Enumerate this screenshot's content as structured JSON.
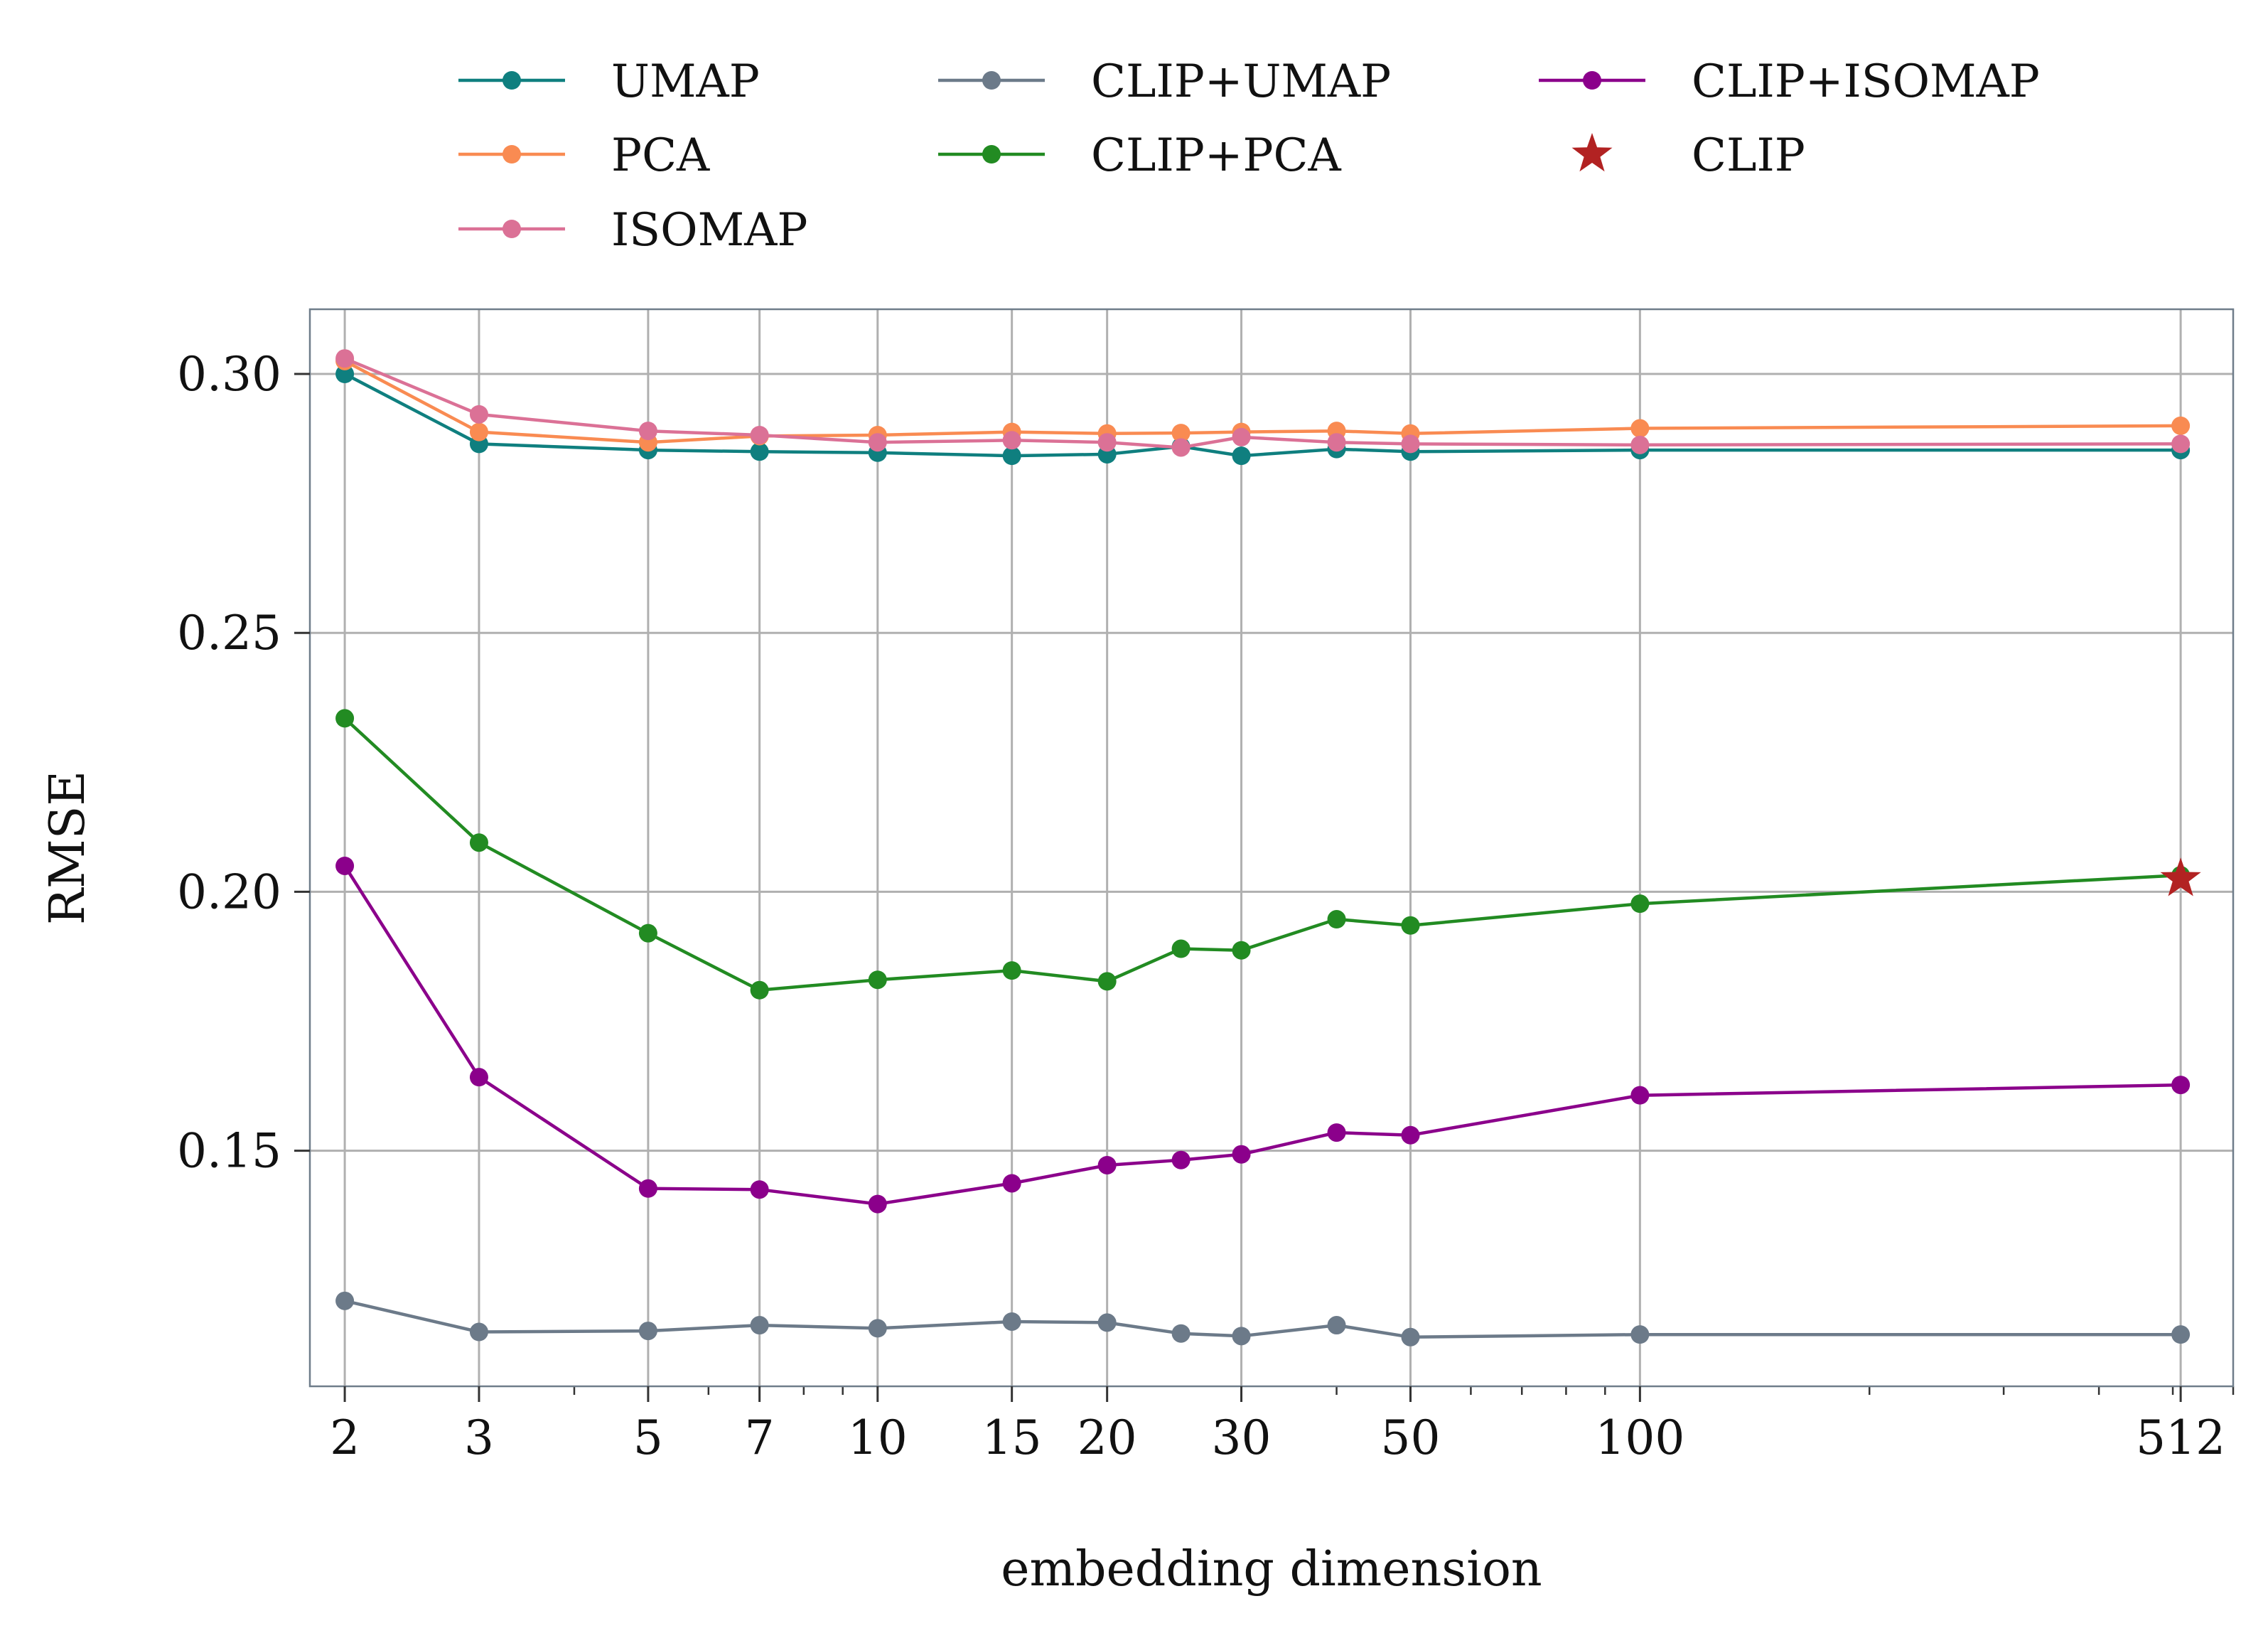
{
  "chart_data": {
    "type": "line",
    "xlabel": "embedding dimension",
    "ylabel": "RMSE",
    "xscale": "log",
    "xlim": [
      1.8,
      600
    ],
    "ylim": [
      0.1045,
      0.3125
    ],
    "x_ticks": [
      2,
      3,
      5,
      7,
      10,
      15,
      20,
      30,
      50,
      100,
      512
    ],
    "y_ticks": [
      0.15,
      0.2,
      0.25,
      0.3
    ],
    "y_tick_labels": [
      "0.15",
      "0.20",
      "0.25",
      "0.30"
    ],
    "grid": true,
    "legend_position": "top",
    "series": [
      {
        "name": "UMAP",
        "color": "#0f7f7f",
        "x": [
          2,
          3,
          5,
          7,
          10,
          15,
          20,
          25,
          30,
          40,
          50,
          100,
          512
        ],
        "y": [
          0.3,
          0.2865,
          0.2853,
          0.285,
          0.2848,
          0.2842,
          0.2845,
          0.286,
          0.2842,
          0.2855,
          0.285,
          0.2853,
          0.2853
        ]
      },
      {
        "name": "PCA",
        "color": "#f98b52",
        "x": [
          2,
          3,
          5,
          7,
          10,
          15,
          20,
          25,
          30,
          40,
          50,
          100,
          512
        ],
        "y": [
          0.3025,
          0.2888,
          0.2868,
          0.288,
          0.2882,
          0.2888,
          0.2885,
          0.2886,
          0.2888,
          0.289,
          0.2885,
          0.2895,
          0.29
        ]
      },
      {
        "name": "ISOMAP",
        "color": "#db7196",
        "x": [
          2,
          3,
          5,
          7,
          10,
          15,
          20,
          25,
          30,
          40,
          50,
          100,
          512
        ],
        "y": [
          0.303,
          0.2922,
          0.289,
          0.2882,
          0.2868,
          0.2872,
          0.2868,
          0.2858,
          0.2878,
          0.2868,
          0.2865,
          0.2863,
          0.2865
        ]
      },
      {
        "name": "CLIP+UMAP",
        "color": "#6c7a89",
        "x": [
          2,
          3,
          5,
          7,
          10,
          15,
          20,
          25,
          30,
          40,
          50,
          100,
          512
        ],
        "y": [
          0.121,
          0.115,
          0.1152,
          0.1163,
          0.1157,
          0.117,
          0.1168,
          0.1147,
          0.1142,
          0.1163,
          0.114,
          0.1145,
          0.1145
        ]
      },
      {
        "name": "CLIP+PCA",
        "color": "#228b22",
        "x": [
          2,
          3,
          5,
          7,
          10,
          15,
          20,
          25,
          30,
          40,
          50,
          100,
          512
        ],
        "y": [
          0.2335,
          0.2095,
          0.192,
          0.181,
          0.183,
          0.1848,
          0.1827,
          0.189,
          0.1887,
          0.1947,
          0.1935,
          0.1977,
          0.2032
        ]
      },
      {
        "name": "CLIP+ISOMAP",
        "color": "#8b008b",
        "x": [
          2,
          3,
          5,
          7,
          10,
          15,
          20,
          25,
          30,
          40,
          50,
          100,
          512
        ],
        "y": [
          0.205,
          0.1642,
          0.1427,
          0.1425,
          0.1397,
          0.1437,
          0.1472,
          0.1482,
          0.1493,
          0.1535,
          0.153,
          0.1607,
          0.1627
        ]
      }
    ],
    "points": [
      {
        "name": "CLIP",
        "color": "#b22222",
        "marker": "star",
        "x": 512,
        "y": 0.2025
      }
    ],
    "legend_order": [
      "UMAP",
      "PCA",
      "ISOMAP",
      "CLIP+UMAP",
      "CLIP+PCA",
      "CLIP+ISOMAP",
      "CLIP"
    ]
  }
}
